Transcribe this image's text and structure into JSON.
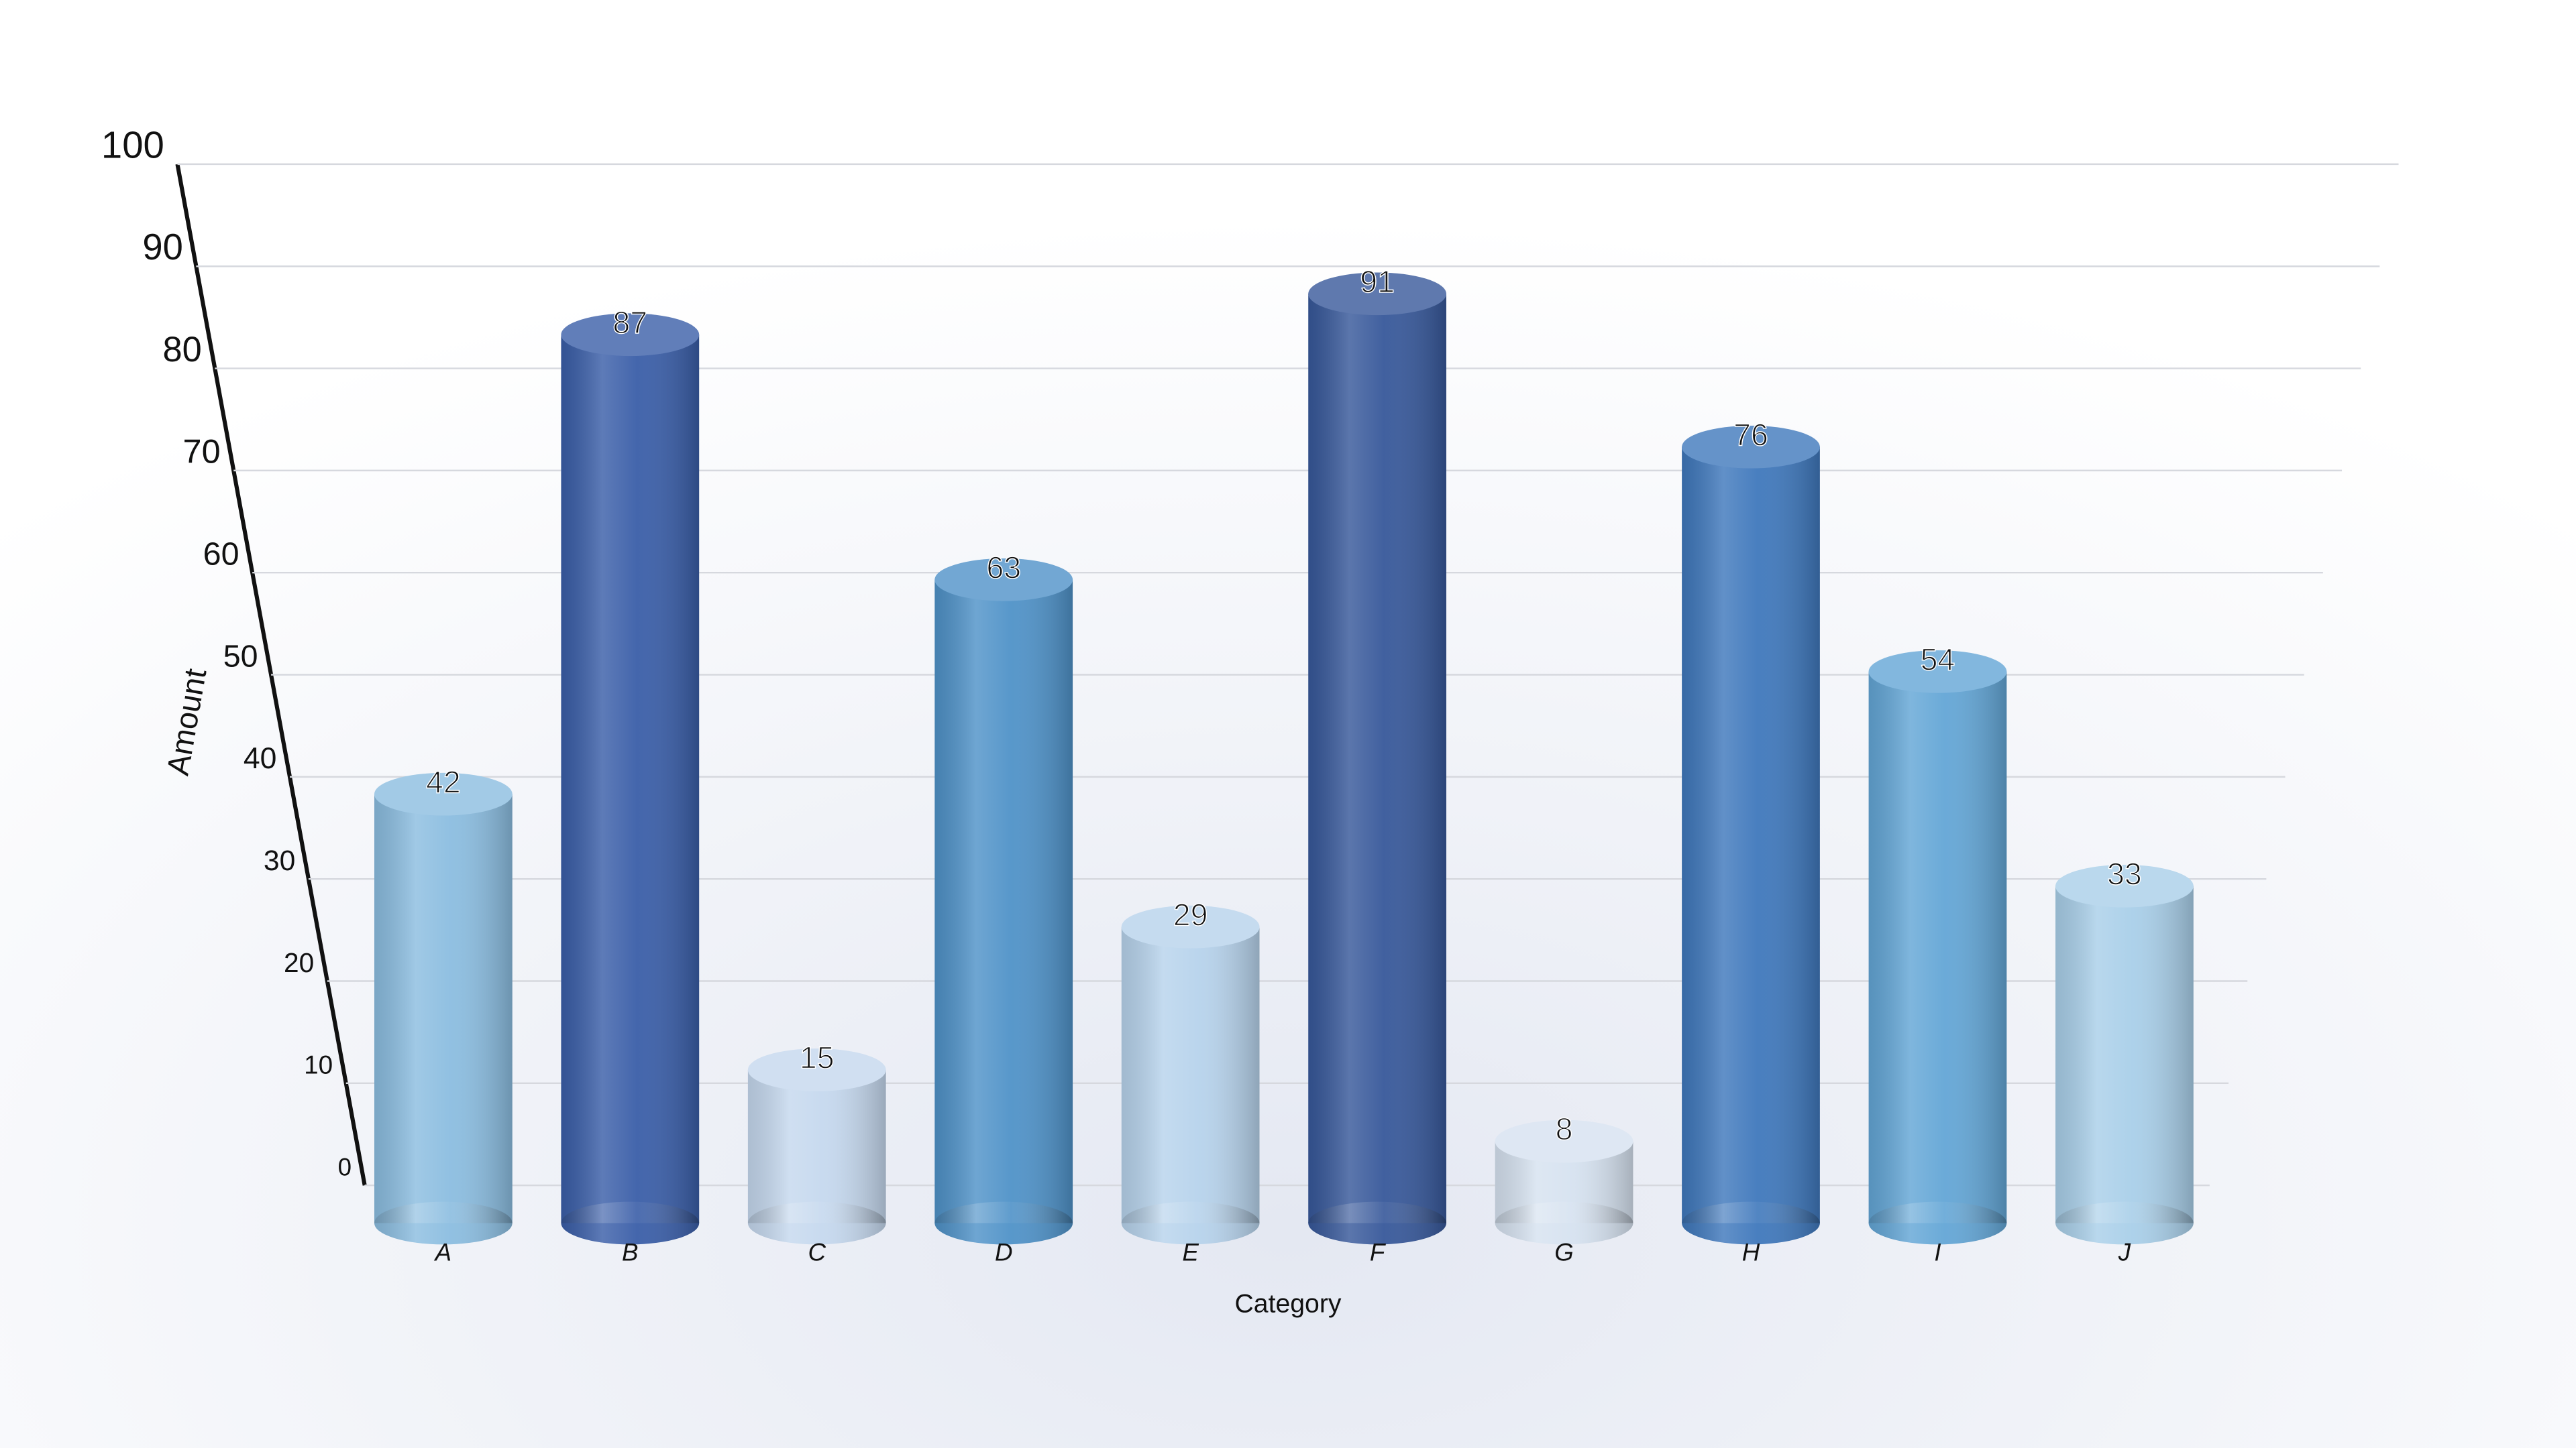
{
  "chart_data": {
    "type": "bar",
    "x_label": "Category",
    "y_label": "Amount",
    "categories": [
      "A",
      "B",
      "C",
      "D",
      "E",
      "F",
      "G",
      "H",
      "I",
      "J"
    ],
    "values": [
      42,
      87,
      15,
      63,
      29,
      91,
      8,
      76,
      54,
      33
    ],
    "colors": [
      "#8bbde0",
      "#3a5ea8",
      "#c5d8ee",
      "#4f92c8",
      "#b7d3ec",
      "#37589a",
      "#d6e2f0",
      "#3f78bc",
      "#63a6d6",
      "#a9cfe9"
    ],
    "ylim": [
      0,
      100
    ],
    "yticks": [
      0,
      10,
      20,
      30,
      40,
      50,
      60,
      70,
      80,
      90,
      100
    ],
    "grid": true
  }
}
